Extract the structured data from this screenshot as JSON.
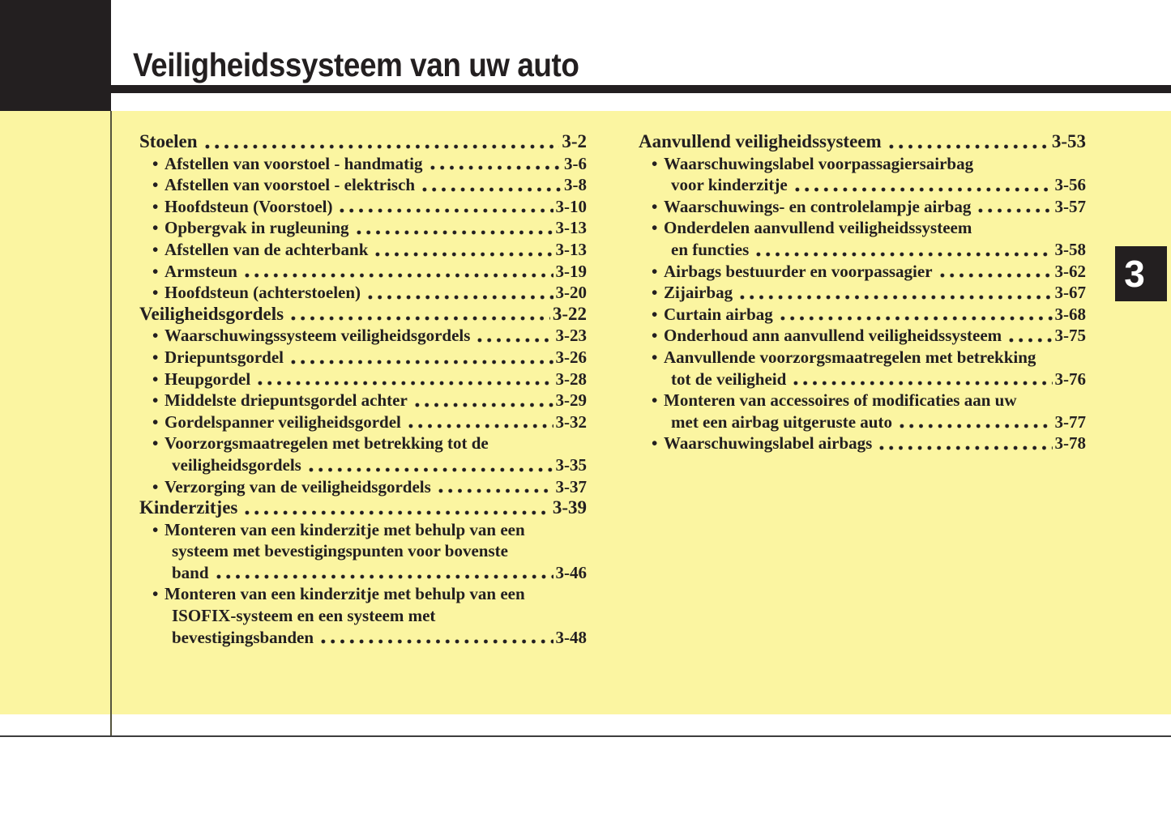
{
  "page": {
    "title": "Veiligheidssysteem van uw auto",
    "chapter_number": "3"
  },
  "glyphs": {
    "bullet": "•"
  },
  "colors": {
    "panel_yellow": "#FBF5A1",
    "ink_black": "#231F20",
    "tab_background": "#231F20",
    "tab_text": "#FFFFFF",
    "rule_gray": "#3D3D3D"
  },
  "toc": {
    "left": [
      {
        "title": "Stoelen",
        "page": "3-2",
        "items": [
          {
            "lines": [
              "Afstellen van voorstoel - handmatig"
            ],
            "page": "3-6"
          },
          {
            "lines": [
              "Afstellen van voorstoel - elektrisch"
            ],
            "page": "3-8"
          },
          {
            "lines": [
              "Hoofdsteun (Voorstoel)"
            ],
            "page": "3-10"
          },
          {
            "lines": [
              "Opbergvak in rugleuning"
            ],
            "page": "3-13"
          },
          {
            "lines": [
              "Afstellen van de achterbank"
            ],
            "page": "3-13"
          },
          {
            "lines": [
              "Armsteun"
            ],
            "page": "3-19"
          },
          {
            "lines": [
              "Hoofdsteun (achterstoelen)"
            ],
            "page": "3-20"
          }
        ]
      },
      {
        "title": "Veiligheidsgordels",
        "page": "3-22",
        "items": [
          {
            "lines": [
              "Waarschuwingssysteem veiligheidsgordels"
            ],
            "page": "3-23"
          },
          {
            "lines": [
              "Driepuntsgordel"
            ],
            "page": "3-26"
          },
          {
            "lines": [
              "Heupgordel"
            ],
            "page": "3-28"
          },
          {
            "lines": [
              "Middelste driepuntsgordel achter"
            ],
            "page": "3-29"
          },
          {
            "lines": [
              "Gordelspanner veiligheidsgordel"
            ],
            "page": "3-32"
          },
          {
            "lines": [
              "Voorzorgsmaatregelen met betrekking tot de",
              "veiligheidsgordels"
            ],
            "page": "3-35"
          },
          {
            "lines": [
              "Verzorging van de veiligheidsgordels"
            ],
            "page": "3-37"
          }
        ]
      },
      {
        "title": "Kinderzitjes",
        "page": "3-39",
        "items": [
          {
            "lines": [
              "Monteren van een kinderzitje met behulp van een",
              "systeem met bevestigingspunten voor bovenste",
              "band"
            ],
            "page": "3-46"
          },
          {
            "lines": [
              "Monteren van een kinderzitje met behulp van een",
              "ISOFIX-systeem en een systeem met",
              "bevestigingsbanden"
            ],
            "page": "3-48"
          }
        ]
      }
    ],
    "right": [
      {
        "title": "Aanvullend veiligheidssysteem",
        "page": "3-53",
        "items": [
          {
            "lines": [
              "Waarschuwingslabel voorpassagiersairbag",
              "voor kinderzitje"
            ],
            "page": "3-56"
          },
          {
            "lines": [
              "Waarschuwings- en controlelampje airbag"
            ],
            "page": "3-57"
          },
          {
            "lines": [
              "Onderdelen aanvullend veiligheidssysteem",
              "en functies"
            ],
            "page": "3-58"
          },
          {
            "lines": [
              "Airbags bestuurder en voorpassagier"
            ],
            "page": "3-62"
          },
          {
            "lines": [
              "Zijairbag"
            ],
            "page": "3-67"
          },
          {
            "lines": [
              "Curtain airbag"
            ],
            "page": "3-68"
          },
          {
            "lines": [
              "Onderhoud ann aanvullend veiligheidssysteem"
            ],
            "page": "3-75"
          },
          {
            "lines": [
              "Aanvullende voorzorgsmaatregelen met betrekking",
              "tot de veiligheid"
            ],
            "page": "3-76"
          },
          {
            "lines": [
              "Monteren van accessoires of modificaties aan uw",
              "met een airbag uitgeruste auto"
            ],
            "page": "3-77"
          },
          {
            "lines": [
              "Waarschuwingslabel airbags"
            ],
            "page": "3-78"
          }
        ]
      }
    ]
  }
}
